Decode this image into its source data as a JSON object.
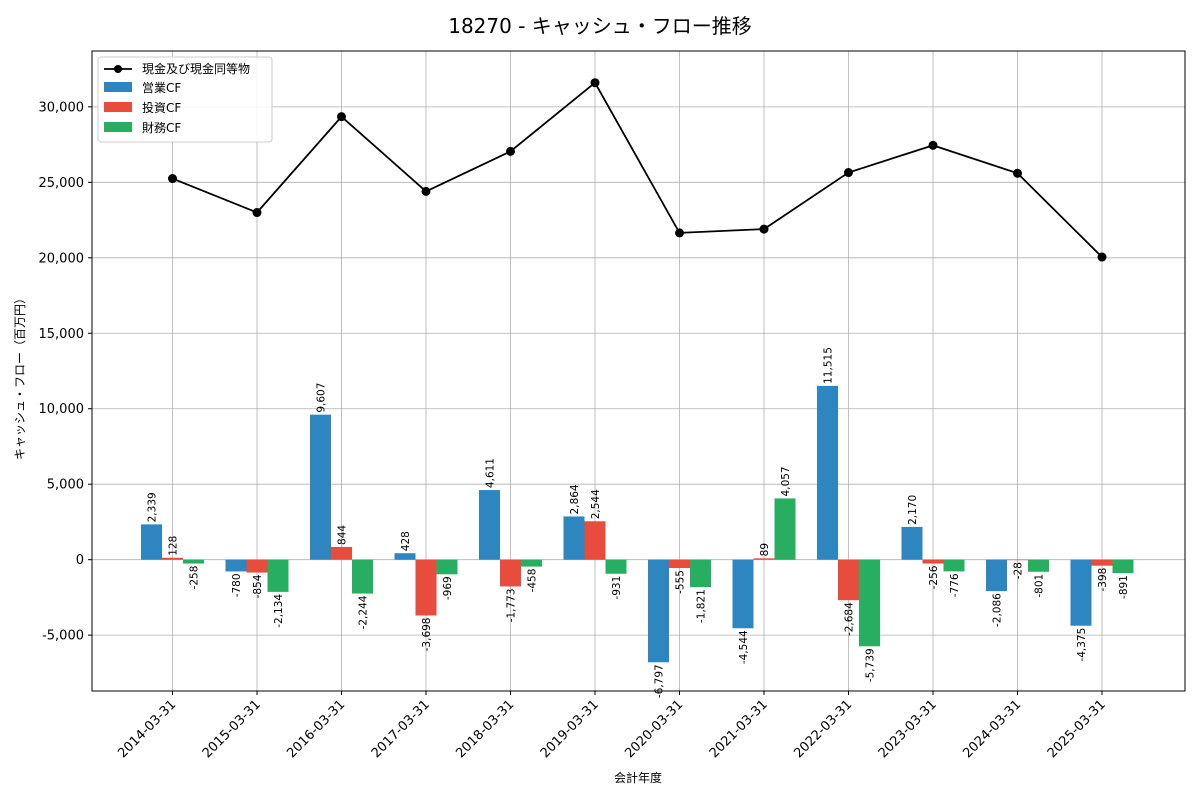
{
  "chart_data": {
    "type": "bar",
    "title": "18270 - キャッシュ・フロー推移",
    "xlabel": "会計年度",
    "ylabel": "キャッシュ・フロー（百万円）",
    "ylim": [
      -8700,
      33700
    ],
    "yticks": [
      -5000,
      0,
      5000,
      10000,
      15000,
      20000,
      25000,
      30000
    ],
    "ytick_labels": [
      "-5,000",
      "0",
      "5,000",
      "10,000",
      "15,000",
      "20,000",
      "25,000",
      "30,000"
    ],
    "grid": true,
    "legend_position": "top-left",
    "categories": [
      "2014-03-31",
      "2015-03-31",
      "2016-03-31",
      "2017-03-31",
      "2018-03-31",
      "2019-03-31",
      "2020-03-31",
      "2021-03-31",
      "2022-03-31",
      "2023-03-31",
      "2024-03-31",
      "2025-03-31"
    ],
    "line_series": {
      "name": "現金及び現金同等物",
      "color": "#000000",
      "values": [
        25250,
        23000,
        29350,
        24400,
        27050,
        31600,
        21650,
        21900,
        25650,
        27450,
        25600,
        20050
      ]
    },
    "series": [
      {
        "name": "営業CF",
        "color": "#2e86c1",
        "values": [
          2339,
          -780,
          9607,
          428,
          4611,
          2864,
          -6797,
          -4544,
          11515,
          2170,
          -2086,
          -4375
        ],
        "labels": [
          "2,339",
          "-780",
          "9,607",
          "428",
          "4,611",
          "2,864",
          "-6,797",
          "-4,544",
          "11,515",
          "2,170",
          "-2,086",
          "-4,375"
        ]
      },
      {
        "name": "投資CF",
        "color": "#e74c3c",
        "values": [
          128,
          -854,
          844,
          -3698,
          -1773,
          2544,
          -555,
          89,
          -2684,
          -256,
          -28,
          -398
        ],
        "labels": [
          "128",
          "-854",
          "844",
          "-3,698",
          "-1,773",
          "2,544",
          "-555",
          "89",
          "-2,684",
          "-256",
          "-28",
          "-398"
        ]
      },
      {
        "name": "財務CF",
        "color": "#27ae60",
        "values": [
          -258,
          -2134,
          -2244,
          -969,
          -458,
          -931,
          -1821,
          4057,
          -5739,
          -776,
          -801,
          -891
        ],
        "labels": [
          "-258",
          "-2,134",
          "-2,244",
          "-969",
          "-458",
          "-931",
          "-1,821",
          "4,057",
          "-5,739",
          "-776",
          "-801",
          "-891"
        ]
      }
    ]
  }
}
